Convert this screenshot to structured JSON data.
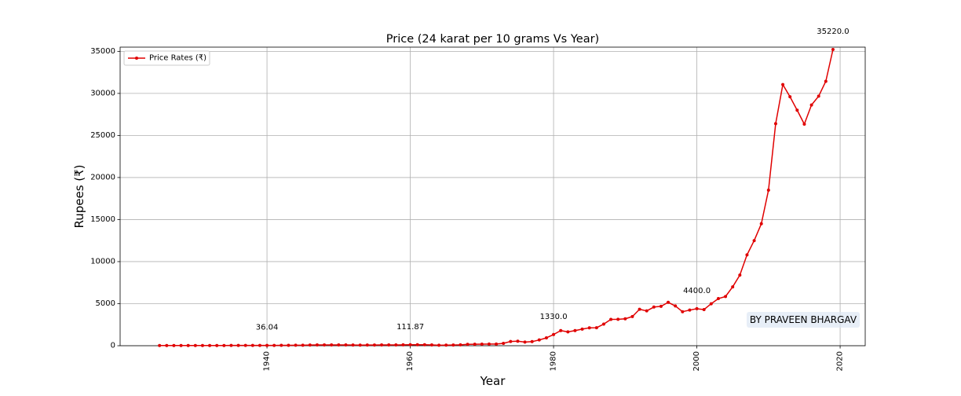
{
  "chart_data": {
    "type": "line",
    "title": "Price (24 karat per 10 grams Vs Year)",
    "xlabel": "Year",
    "ylabel": "Rupees (₹)",
    "xlim": [
      1919.5,
      2023.5
    ],
    "ylim": [
      0,
      35500
    ],
    "xticks": [
      1940,
      1960,
      1980,
      2000,
      2020
    ],
    "yticks": [
      0,
      5000,
      10000,
      15000,
      20000,
      25000,
      30000,
      35000
    ],
    "grid": true,
    "legend_position": "top-left",
    "series": [
      {
        "name": "Price Rates (₹)",
        "color": "#e00000",
        "x": [
          1925,
          1926,
          1927,
          1928,
          1929,
          1930,
          1931,
          1932,
          1933,
          1934,
          1935,
          1936,
          1937,
          1938,
          1939,
          1940,
          1941,
          1942,
          1943,
          1944,
          1945,
          1946,
          1947,
          1948,
          1949,
          1950,
          1951,
          1952,
          1953,
          1954,
          1955,
          1956,
          1957,
          1958,
          1959,
          1960,
          1961,
          1962,
          1963,
          1964,
          1965,
          1966,
          1967,
          1968,
          1969,
          1970,
          1971,
          1972,
          1973,
          1974,
          1975,
          1976,
          1977,
          1978,
          1979,
          1980,
          1981,
          1982,
          1983,
          1984,
          1985,
          1986,
          1987,
          1988,
          1989,
          1990,
          1991,
          1992,
          1993,
          1994,
          1995,
          1996,
          1997,
          1998,
          1999,
          2000,
          2001,
          2002,
          2003,
          2004,
          2005,
          2006,
          2007,
          2008,
          2009,
          2010,
          2011,
          2012,
          2013,
          2014,
          2015,
          2016,
          2017,
          2018,
          2019
        ],
        "y": [
          18.75,
          18.43,
          18.37,
          18.37,
          18.43,
          18.05,
          18.18,
          23.06,
          24.05,
          28.81,
          30.81,
          29.81,
          30.18,
          29.93,
          31.74,
          36.04,
          37.43,
          44.05,
          51.05,
          52.93,
          62,
          83.87,
          88.62,
          95.87,
          94.17,
          99.18,
          98,
          76.81,
          73.06,
          77.75,
          79.18,
          90.81,
          90.62,
          95.38,
          102.56,
          111.87,
          119.35,
          119.75,
          97,
          63.25,
          71.75,
          83.75,
          102.5,
          162,
          176,
          184,
          193,
          202,
          278.5,
          506,
          540,
          432,
          486,
          685,
          937,
          1330,
          1800,
          1645,
          1800,
          1970,
          2130,
          2140,
          2570,
          3130,
          3140,
          3200,
          3466,
          4334,
          4140,
          4598,
          4680,
          5160,
          4725,
          4045,
          4234,
          4400,
          4300,
          4990,
          5600,
          5850,
          7000,
          8400,
          10800,
          12500,
          14500,
          18500,
          26400,
          31050,
          29600,
          28006.5,
          26343.5,
          28623.5,
          29667.5,
          31438,
          35220
        ]
      }
    ],
    "annotations": [
      {
        "x": 1940,
        "y": 36.04,
        "text": "36.04"
      },
      {
        "x": 1960,
        "y": 111.87,
        "text": "111.87"
      },
      {
        "x": 1980,
        "y": 1330,
        "text": "1330.0"
      },
      {
        "x": 2000,
        "y": 4400,
        "text": "4400.0"
      },
      {
        "x": 2019,
        "y": 35220,
        "text": "35220.0"
      }
    ],
    "watermark": "BY PRAVEEN BHARGAV"
  }
}
